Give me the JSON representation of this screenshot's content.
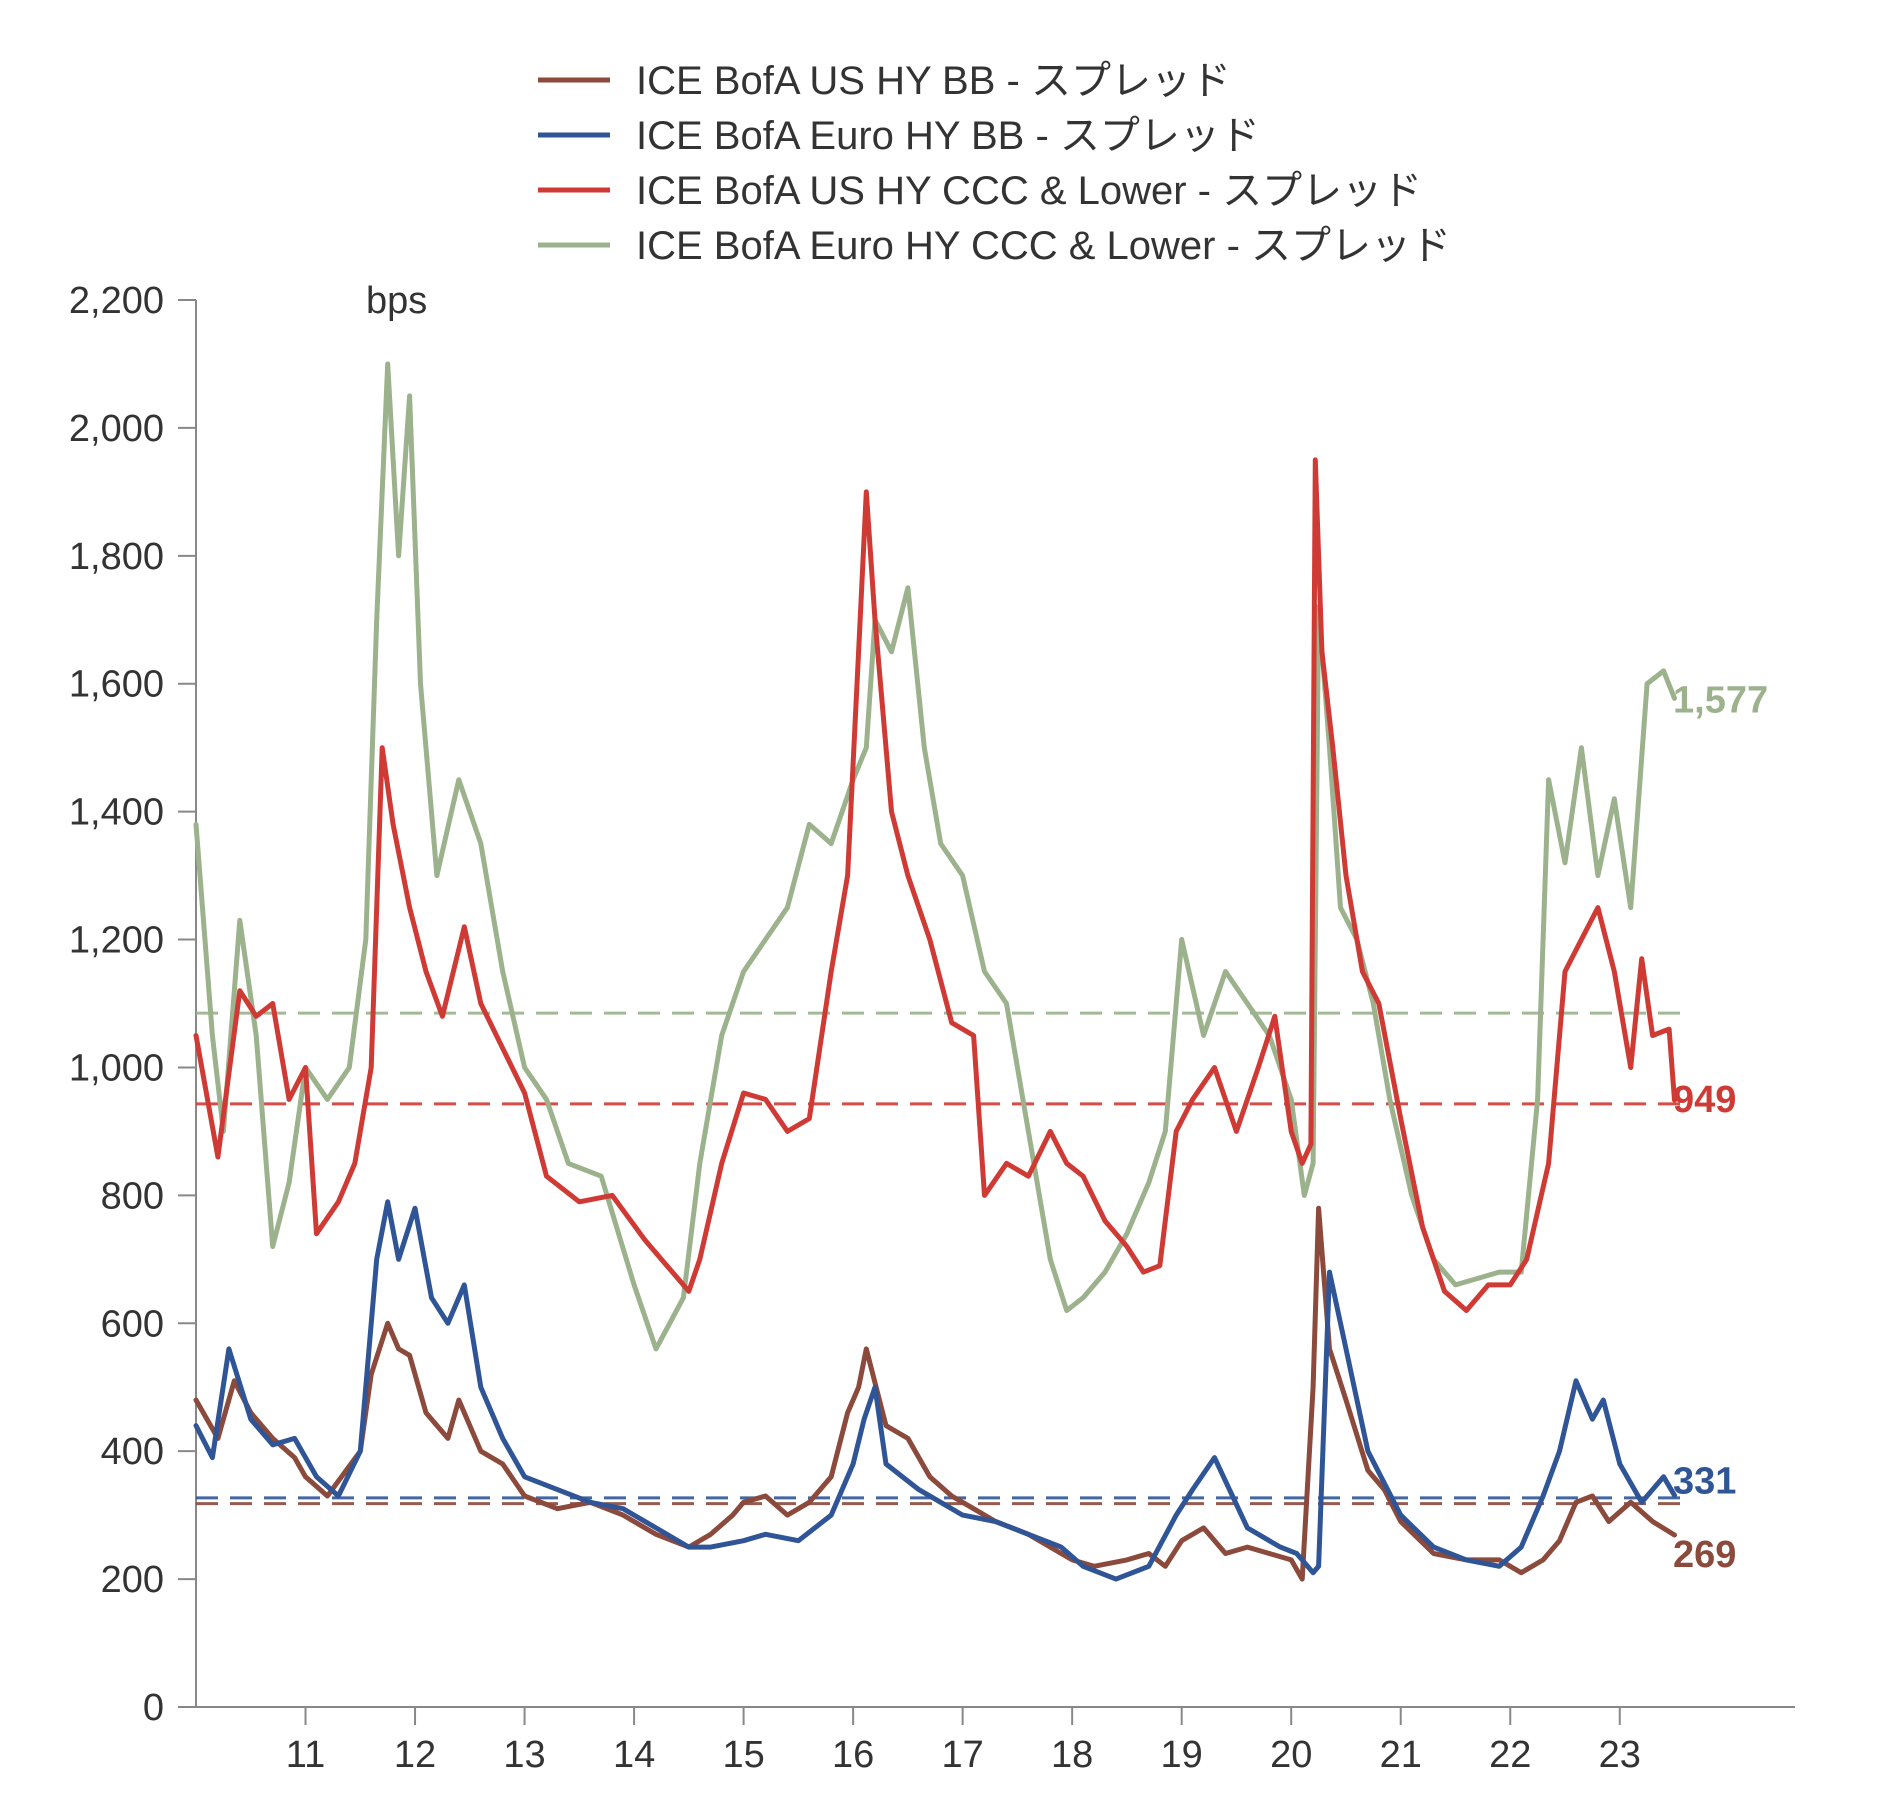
{
  "chart_data": {
    "type": "line",
    "ylabel": "bps",
    "ylim": [
      0,
      2200
    ],
    "yticks": [
      0,
      200,
      400,
      600,
      800,
      1000,
      1200,
      1400,
      1600,
      1800,
      2000,
      2200
    ],
    "ytick_labels": [
      "0",
      "200",
      "400",
      "600",
      "800",
      "1,000",
      "1,200",
      "1,400",
      "1,600",
      "1,800",
      "2,000",
      "2,200"
    ],
    "xlim": [
      2010.0,
      2024.6
    ],
    "xticks": [
      2011,
      2012,
      2013,
      2014,
      2015,
      2016,
      2017,
      2018,
      2019,
      2020,
      2021,
      2022,
      2023
    ],
    "xtick_labels": [
      "11",
      "12",
      "13",
      "14",
      "15",
      "16",
      "17",
      "18",
      "19",
      "20",
      "21",
      "22",
      "23"
    ],
    "grid": false,
    "legend_position": "top",
    "series": [
      {
        "name": "ICE BofA US HY BB - スプレッド",
        "color": "#8B4A3C",
        "end_label": "269",
        "average": 318,
        "x": [
          2010.0,
          2010.2,
          2010.35,
          2010.5,
          2010.7,
          2010.9,
          2011.0,
          2011.2,
          2011.5,
          2011.6,
          2011.75,
          2011.85,
          2011.95,
          2012.1,
          2012.3,
          2012.4,
          2012.6,
          2012.8,
          2013.0,
          2013.3,
          2013.6,
          2013.9,
          2014.2,
          2014.5,
          2014.7,
          2014.9,
          2015.0,
          2015.2,
          2015.4,
          2015.6,
          2015.8,
          2015.95,
          2016.05,
          2016.12,
          2016.3,
          2016.5,
          2016.7,
          2016.9,
          2017.1,
          2017.3,
          2017.6,
          2017.8,
          2018.0,
          2018.2,
          2018.5,
          2018.7,
          2018.85,
          2019.0,
          2019.2,
          2019.4,
          2019.6,
          2019.8,
          2020.0,
          2020.1,
          2020.2,
          2020.25,
          2020.35,
          2020.5,
          2020.7,
          2020.85,
          2021.0,
          2021.3,
          2021.6,
          2021.9,
          2022.1,
          2022.3,
          2022.45,
          2022.6,
          2022.75,
          2022.9,
          2023.1,
          2023.3,
          2023.5
        ],
        "y": [
          480,
          420,
          510,
          460,
          420,
          390,
          360,
          330,
          400,
          520,
          600,
          560,
          550,
          460,
          420,
          480,
          400,
          380,
          330,
          310,
          320,
          300,
          270,
          250,
          270,
          300,
          320,
          330,
          300,
          320,
          360,
          460,
          500,
          560,
          440,
          420,
          360,
          330,
          310,
          290,
          270,
          250,
          230,
          220,
          230,
          240,
          220,
          260,
          280,
          240,
          250,
          240,
          230,
          200,
          500,
          780,
          560,
          480,
          370,
          340,
          290,
          240,
          230,
          230,
          210,
          230,
          260,
          320,
          330,
          290,
          320,
          290,
          269
        ]
      },
      {
        "name": "ICE BofA Euro HY BB - スプレッド",
        "color": "#2F5597",
        "end_label": "331",
        "average": 327,
        "x": [
          2010.0,
          2010.15,
          2010.3,
          2010.5,
          2010.7,
          2010.9,
          2011.1,
          2011.3,
          2011.5,
          2011.65,
          2011.75,
          2011.85,
          2012.0,
          2012.15,
          2012.3,
          2012.45,
          2012.6,
          2012.8,
          2013.0,
          2013.3,
          2013.6,
          2013.9,
          2014.2,
          2014.5,
          2014.7,
          2015.0,
          2015.2,
          2015.5,
          2015.8,
          2016.0,
          2016.1,
          2016.2,
          2016.3,
          2016.6,
          2016.8,
          2017.0,
          2017.3,
          2017.6,
          2017.9,
          2018.1,
          2018.4,
          2018.7,
          2018.95,
          2019.1,
          2019.3,
          2019.6,
          2019.9,
          2020.05,
          2020.15,
          2020.2,
          2020.25,
          2020.35,
          2020.5,
          2020.7,
          2021.0,
          2021.3,
          2021.6,
          2021.9,
          2022.1,
          2022.3,
          2022.45,
          2022.6,
          2022.75,
          2022.85,
          2023.0,
          2023.2,
          2023.4,
          2023.5
        ],
        "y": [
          440,
          390,
          560,
          450,
          410,
          420,
          360,
          330,
          400,
          700,
          790,
          700,
          780,
          640,
          600,
          660,
          500,
          420,
          360,
          340,
          320,
          310,
          280,
          250,
          250,
          260,
          270,
          260,
          300,
          380,
          450,
          500,
          380,
          340,
          320,
          300,
          290,
          270,
          250,
          220,
          200,
          220,
          300,
          340,
          390,
          280,
          250,
          240,
          220,
          210,
          220,
          680,
          560,
          400,
          300,
          250,
          230,
          220,
          250,
          330,
          400,
          510,
          450,
          480,
          380,
          320,
          360,
          331
        ]
      },
      {
        "name": "ICE BofA US HY CCC & Lower - スプレッド",
        "color": "#D03A34",
        "end_label": "949",
        "average": 943,
        "x": [
          2010.0,
          2010.2,
          2010.4,
          2010.55,
          2010.7,
          2010.85,
          2011.0,
          2011.1,
          2011.3,
          2011.45,
          2011.6,
          2011.7,
          2011.8,
          2011.95,
          2012.1,
          2012.25,
          2012.45,
          2012.6,
          2012.8,
          2013.0,
          2013.2,
          2013.5,
          2013.8,
          2014.1,
          2014.3,
          2014.5,
          2014.6,
          2014.8,
          2015.0,
          2015.2,
          2015.4,
          2015.6,
          2015.8,
          2015.95,
          2016.05,
          2016.12,
          2016.2,
          2016.35,
          2016.5,
          2016.7,
          2016.9,
          2017.1,
          2017.2,
          2017.4,
          2017.6,
          2017.8,
          2017.95,
          2018.1,
          2018.3,
          2018.5,
          2018.65,
          2018.8,
          2018.95,
          2019.1,
          2019.3,
          2019.5,
          2019.7,
          2019.85,
          2020.0,
          2020.1,
          2020.18,
          2020.22,
          2020.28,
          2020.38,
          2020.5,
          2020.65,
          2020.8,
          2021.0,
          2021.2,
          2021.4,
          2021.6,
          2021.8,
          2022.0,
          2022.15,
          2022.35,
          2022.5,
          2022.65,
          2022.8,
          2022.95,
          2023.1,
          2023.2,
          2023.3,
          2023.45,
          2023.5
        ],
        "y": [
          1050,
          860,
          1120,
          1080,
          1100,
          950,
          1000,
          740,
          790,
          850,
          1000,
          1500,
          1380,
          1250,
          1150,
          1080,
          1220,
          1100,
          1030,
          960,
          830,
          790,
          800,
          730,
          690,
          650,
          700,
          850,
          960,
          950,
          900,
          920,
          1150,
          1300,
          1650,
          1900,
          1700,
          1400,
          1300,
          1200,
          1070,
          1050,
          800,
          850,
          830,
          900,
          850,
          830,
          760,
          720,
          680,
          690,
          900,
          950,
          1000,
          900,
          1000,
          1080,
          900,
          850,
          880,
          1950,
          1650,
          1500,
          1300,
          1150,
          1100,
          920,
          750,
          650,
          620,
          660,
          660,
          700,
          850,
          1150,
          1200,
          1250,
          1150,
          1000,
          1170,
          1050,
          1060,
          949
        ]
      },
      {
        "name": "ICE BofA Euro HY CCC & Lower - スプレッド",
        "color": "#9BB28D",
        "end_label": "1,577",
        "average": 1085,
        "x": [
          2010.0,
          2010.15,
          2010.25,
          2010.4,
          2010.55,
          2010.7,
          2010.85,
          2011.0,
          2011.2,
          2011.4,
          2011.55,
          2011.65,
          2011.75,
          2011.85,
          2011.95,
          2012.05,
          2012.2,
          2012.4,
          2012.6,
          2012.8,
          2013.0,
          2013.2,
          2013.4,
          2013.7,
          2014.0,
          2014.2,
          2014.45,
          2014.6,
          2014.8,
          2015.0,
          2015.2,
          2015.4,
          2015.6,
          2015.8,
          2016.0,
          2016.12,
          2016.2,
          2016.35,
          2016.5,
          2016.65,
          2016.8,
          2017.0,
          2017.2,
          2017.4,
          2017.6,
          2017.8,
          2017.95,
          2018.1,
          2018.3,
          2018.5,
          2018.7,
          2018.85,
          2019.0,
          2019.2,
          2019.4,
          2019.6,
          2019.8,
          2020.0,
          2020.12,
          2020.2,
          2020.25,
          2020.35,
          2020.45,
          2020.6,
          2020.75,
          2020.9,
          2021.1,
          2021.3,
          2021.5,
          2021.7,
          2021.9,
          2022.1,
          2022.25,
          2022.35,
          2022.5,
          2022.65,
          2022.8,
          2022.95,
          2023.1,
          2023.25,
          2023.4,
          2023.5
        ],
        "y": [
          1380,
          1050,
          900,
          1230,
          1050,
          720,
          820,
          1000,
          950,
          1000,
          1200,
          1700,
          2100,
          1800,
          2050,
          1600,
          1300,
          1450,
          1350,
          1150,
          1000,
          950,
          850,
          830,
          660,
          560,
          640,
          850,
          1050,
          1150,
          1200,
          1250,
          1380,
          1350,
          1450,
          1500,
          1700,
          1650,
          1750,
          1500,
          1350,
          1300,
          1150,
          1100,
          900,
          700,
          620,
          640,
          680,
          740,
          820,
          900,
          1200,
          1050,
          1150,
          1100,
          1050,
          950,
          800,
          850,
          1720,
          1500,
          1250,
          1200,
          1100,
          950,
          800,
          700,
          660,
          670,
          680,
          680,
          950,
          1450,
          1320,
          1500,
          1300,
          1420,
          1250,
          1600,
          1620,
          1577
        ]
      }
    ]
  }
}
